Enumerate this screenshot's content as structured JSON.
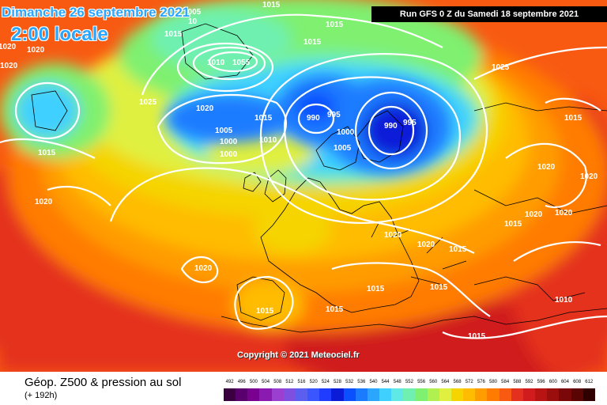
{
  "header": {
    "run_label": "Run GFS 0 Z du Samedi 18 septembre 2021",
    "valid_date": "Dimanche 26 septembre 2021",
    "valid_time": "2:00 locale"
  },
  "map": {
    "copyright": "Copyright © 2021 Meteociel.fr",
    "pressure_labels": [
      "1015",
      "1005",
      "10",
      "1015",
      "1015",
      "1020",
      "1020",
      "1020",
      "1015",
      "1010",
      "1055",
      "1025",
      "1020",
      "1025",
      "1015",
      "990",
      "995",
      "990",
      "995",
      "1015",
      "1010",
      "1005",
      "1005",
      "1000",
      "1000",
      "1000",
      "1015",
      "1020",
      "1020",
      "1020",
      "1020",
      "1015",
      "1020",
      "1020",
      "1015",
      "1020",
      "1015",
      "1015",
      "1015",
      "1010",
      "1015",
      "1015",
      "1020"
    ],
    "colors": {
      "low": "#0a1cd8",
      "mid": "#f5d400",
      "high": "#e4311f"
    }
  },
  "footer": {
    "title": "Géop. Z500 & pression au sol",
    "forecast_hour": "(+ 192h)",
    "scale_values": [
      "492",
      "496",
      "500",
      "504",
      "508",
      "512",
      "516",
      "520",
      "524",
      "528",
      "532",
      "536",
      "540",
      "544",
      "548",
      "552",
      "556",
      "560",
      "564",
      "568",
      "572",
      "576",
      "580",
      "584",
      "588",
      "592",
      "596",
      "600",
      "604",
      "608",
      "612"
    ],
    "scale_colors": [
      "#3a003f",
      "#5a006e",
      "#7a008f",
      "#8a1ab0",
      "#9b3fd0",
      "#7f4fe0",
      "#5a5ff0",
      "#3a56ff",
      "#1f3cff",
      "#0a1cd8",
      "#0a50ff",
      "#1a7bff",
      "#2aa6ff",
      "#3fd0ff",
      "#5fe8e6",
      "#6ff0b0",
      "#7ff070",
      "#b0f050",
      "#e0f040",
      "#f5d400",
      "#ffbc00",
      "#ff9c00",
      "#ff7c00",
      "#f85a12",
      "#e4311f",
      "#d01c1c",
      "#b81414",
      "#9a0e0e",
      "#7a0808",
      "#5a0404",
      "#300000"
    ]
  }
}
